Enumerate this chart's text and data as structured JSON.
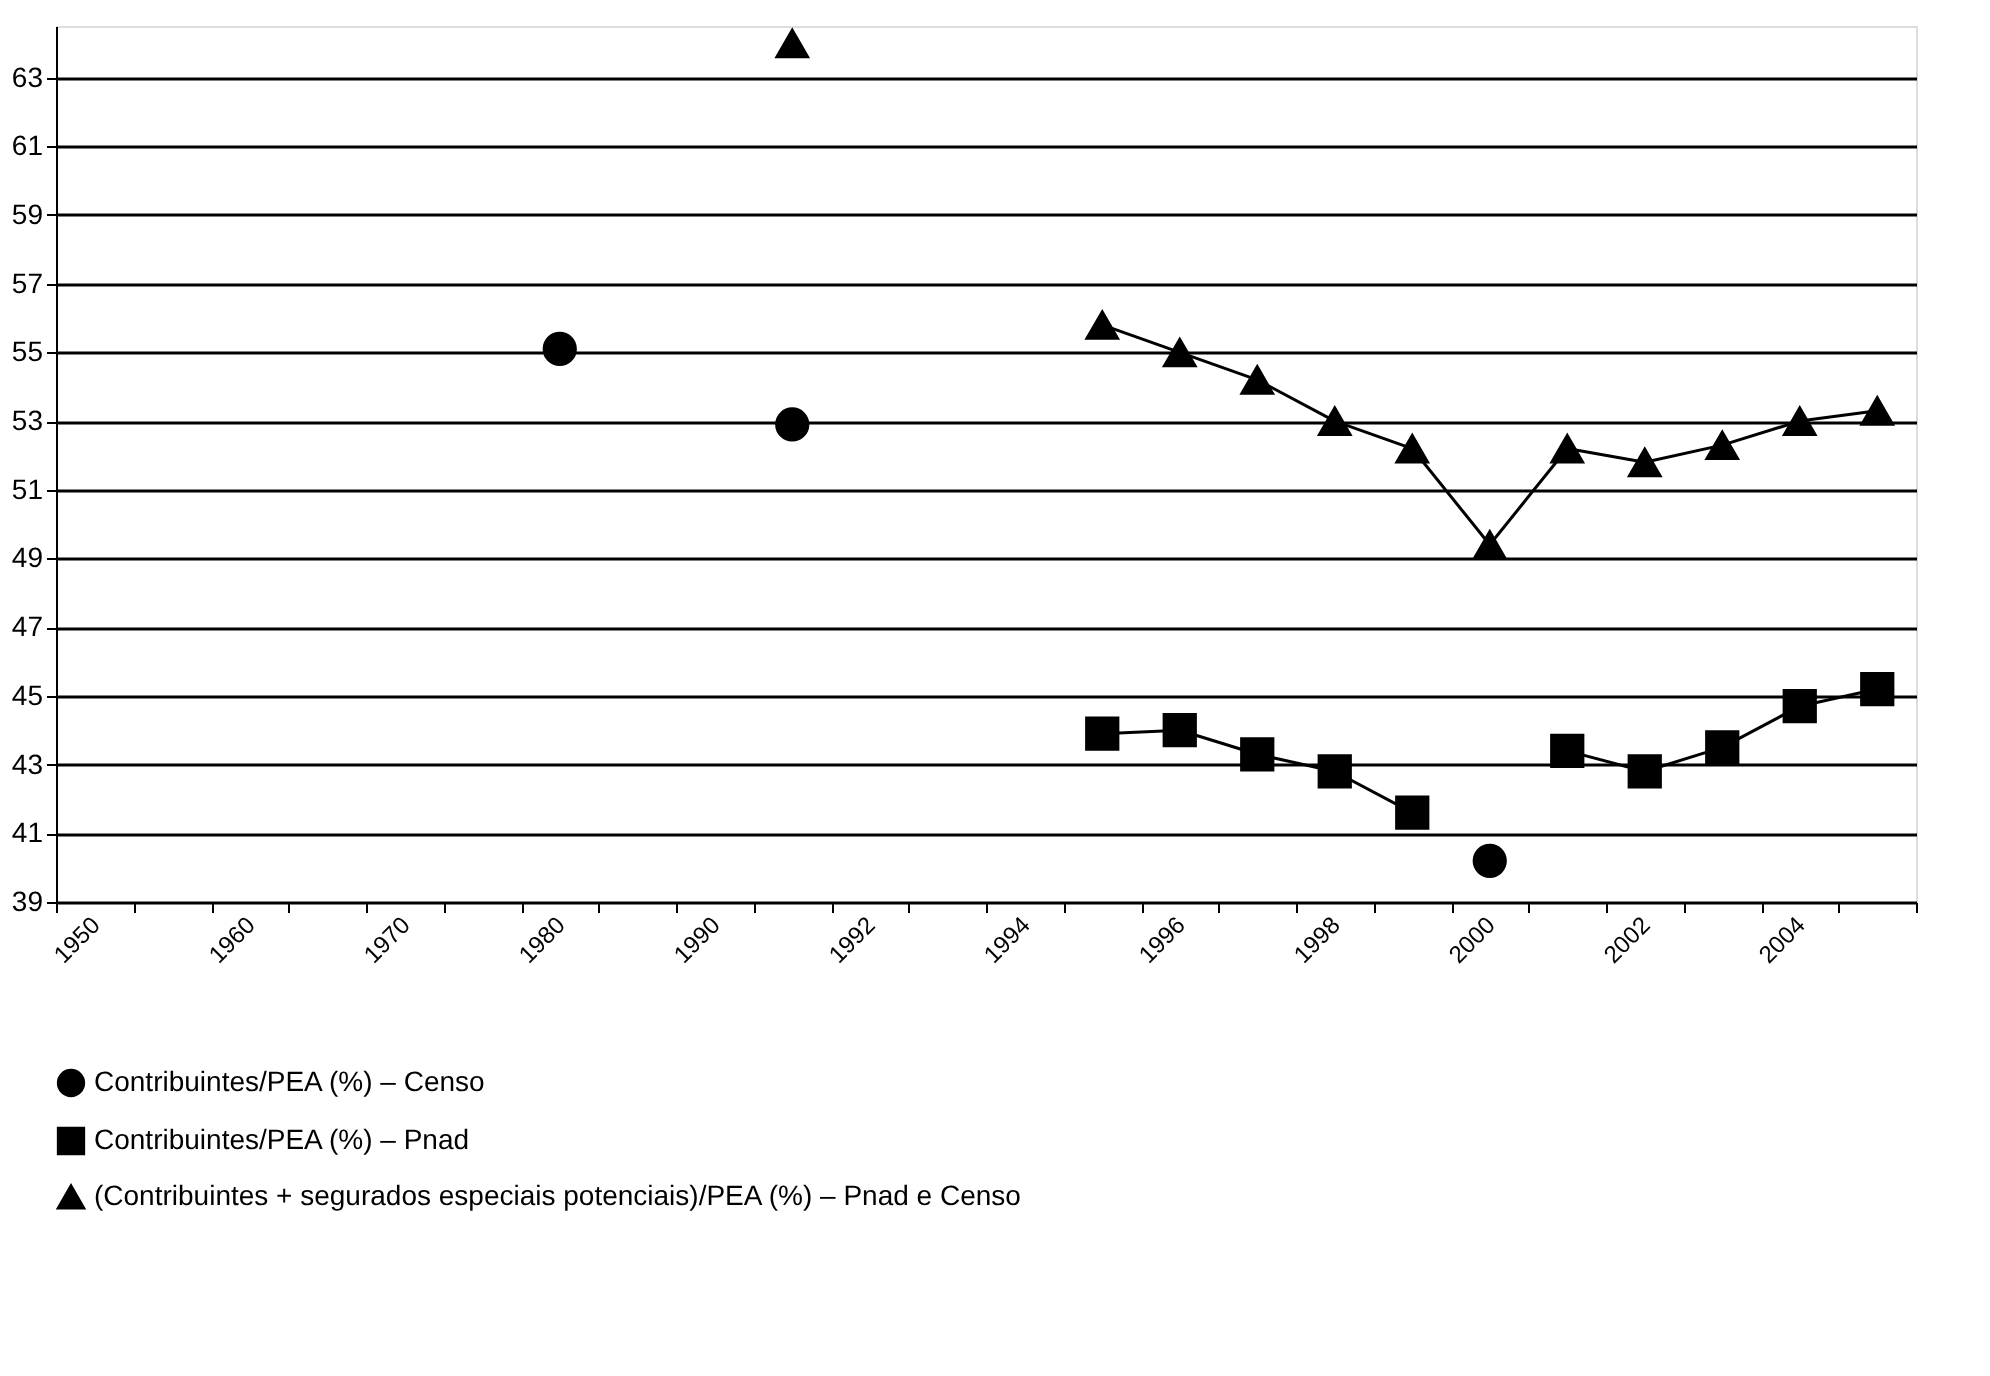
{
  "chart_data": {
    "type": "line",
    "categories": [
      "1950",
      null,
      "1960",
      null,
      "1970",
      null,
      "1980",
      null,
      "1990",
      null,
      "1992",
      null,
      "1994",
      null,
      "1996",
      null,
      "1998",
      null,
      "2000",
      null,
      "2002",
      null,
      "2004",
      null
    ],
    "series": [
      {
        "name": "Contribuintes/PEA (%) – Censo",
        "color": "#000000",
        "marker": "circle",
        "values": [
          null,
          null,
          null,
          null,
          null,
          null,
          55.1,
          null,
          null,
          52.9,
          null,
          null,
          null,
          null,
          null,
          null,
          null,
          null,
          40.2,
          null,
          null,
          null,
          null,
          null
        ]
      },
      {
        "name": "Contribuintes/PEA (%) – Pnad",
        "color": "#000000",
        "marker": "square",
        "values": [
          null,
          null,
          null,
          null,
          null,
          null,
          null,
          null,
          null,
          null,
          null,
          null,
          null,
          43.9,
          44.0,
          43.3,
          42.8,
          41.6,
          null,
          43.4,
          42.8,
          43.5,
          44.7,
          45.2
        ]
      },
      {
        "name": "(Contribuintes + segurados especiais potenciais)/PEA (%) – Pnad e Censo",
        "color": "#000000",
        "marker": "triangle",
        "values": [
          null,
          null,
          null,
          null,
          null,
          null,
          null,
          null,
          null,
          64.0,
          null,
          null,
          null,
          55.8,
          55.0,
          54.2,
          53.0,
          52.2,
          49.4,
          52.2,
          51.8,
          52.3,
          53.0,
          53.3
        ]
      }
    ],
    "ylim": [
      39,
      64.5
    ],
    "yticks": [
      39,
      41,
      43,
      45,
      47,
      49,
      51,
      53,
      55,
      57,
      59,
      61,
      63
    ],
    "grid": "y",
    "legend": "bottom",
    "line_style": "solid"
  }
}
